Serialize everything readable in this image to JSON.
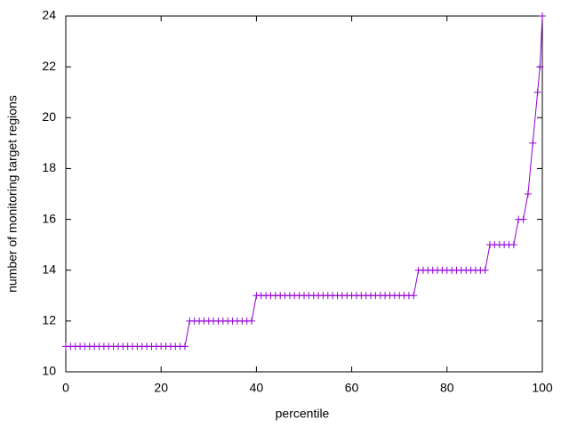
{
  "chart_data": {
    "type": "line",
    "xlabel": "percentile",
    "ylabel": "number of monitoring target regions",
    "x": [
      0,
      1,
      2,
      3,
      4,
      5,
      6,
      7,
      8,
      9,
      10,
      11,
      12,
      13,
      14,
      15,
      16,
      17,
      18,
      19,
      20,
      21,
      22,
      23,
      24,
      25,
      26,
      27,
      28,
      29,
      30,
      31,
      32,
      33,
      34,
      35,
      36,
      37,
      38,
      39,
      40,
      41,
      42,
      43,
      44,
      45,
      46,
      47,
      48,
      49,
      50,
      51,
      52,
      53,
      54,
      55,
      56,
      57,
      58,
      59,
      60,
      61,
      62,
      63,
      64,
      65,
      66,
      67,
      68,
      69,
      70,
      71,
      72,
      73,
      74,
      75,
      76,
      77,
      78,
      79,
      80,
      81,
      82,
      83,
      84,
      85,
      86,
      87,
      88,
      89,
      90,
      91,
      92,
      93,
      94,
      95,
      96,
      97,
      98,
      99,
      99.5,
      100
    ],
    "series": [
      {
        "color": "#9400d3",
        "values": [
          11,
          11,
          11,
          11,
          11,
          11,
          11,
          11,
          11,
          11,
          11,
          11,
          11,
          11,
          11,
          11,
          11,
          11,
          11,
          11,
          11,
          11,
          11,
          11,
          11,
          11,
          12,
          12,
          12,
          12,
          12,
          12,
          12,
          12,
          12,
          12,
          12,
          12,
          12,
          12,
          13,
          13,
          13,
          13,
          13,
          13,
          13,
          13,
          13,
          13,
          13,
          13,
          13,
          13,
          13,
          13,
          13,
          13,
          13,
          13,
          13,
          13,
          13,
          13,
          13,
          13,
          13,
          13,
          13,
          13,
          13,
          13,
          13,
          13,
          14,
          14,
          14,
          14,
          14,
          14,
          14,
          14,
          14,
          14,
          14,
          14,
          14,
          14,
          14,
          15,
          15,
          15,
          15,
          15,
          15,
          16,
          16,
          17,
          19,
          21,
          22,
          24
        ]
      }
    ],
    "xlim": [
      0,
      100
    ],
    "xticks": [
      0,
      20,
      40,
      60,
      80,
      100
    ],
    "ylim": [
      10,
      24
    ],
    "yticks": [
      10,
      12,
      14,
      16,
      18,
      20,
      22,
      24
    ],
    "grid": false
  }
}
